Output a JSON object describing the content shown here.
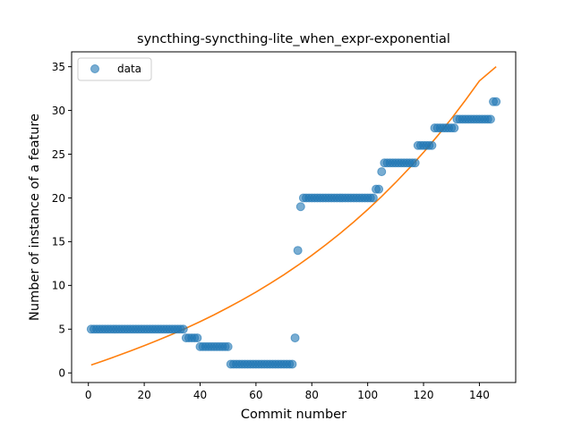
{
  "chart_data": {
    "type": "scatter",
    "title": "syncthing-syncthing-lite_when_expr-exponential",
    "xlabel": "Commit number",
    "ylabel": "Number of instance of a feature",
    "xlim": [
      -6,
      153
    ],
    "ylim": [
      -1.1,
      36.7
    ],
    "xticks": [
      0,
      20,
      40,
      60,
      80,
      100,
      120,
      140
    ],
    "yticks": [
      0,
      5,
      10,
      15,
      20,
      25,
      30,
      35
    ],
    "grid": false,
    "legend": {
      "placement": "top-left",
      "entries": [
        "data"
      ]
    },
    "colors": {
      "data": "#1f77b4",
      "fit": "#ff7f0e"
    },
    "series": [
      {
        "name": "data",
        "kind": "scatter",
        "x": [
          1,
          2,
          3,
          4,
          5,
          6,
          7,
          8,
          9,
          10,
          11,
          12,
          13,
          14,
          15,
          16,
          17,
          18,
          19,
          20,
          21,
          22,
          23,
          24,
          25,
          26,
          27,
          28,
          29,
          30,
          31,
          32,
          33,
          34,
          35,
          36,
          37,
          38,
          39,
          40,
          41,
          42,
          43,
          44,
          45,
          46,
          47,
          48,
          49,
          50,
          51,
          52,
          53,
          54,
          55,
          56,
          57,
          58,
          59,
          60,
          61,
          62,
          63,
          64,
          65,
          66,
          67,
          68,
          69,
          70,
          71,
          72,
          73,
          74,
          75,
          76,
          77,
          78,
          79,
          80,
          81,
          82,
          83,
          84,
          85,
          86,
          87,
          88,
          89,
          90,
          91,
          92,
          93,
          94,
          95,
          96,
          97,
          98,
          99,
          100,
          101,
          102,
          103,
          104,
          105,
          106,
          107,
          108,
          109,
          110,
          111,
          112,
          113,
          114,
          115,
          116,
          117,
          118,
          119,
          120,
          121,
          122,
          123,
          124,
          125,
          126,
          127,
          128,
          129,
          130,
          131,
          132,
          133,
          134,
          135,
          136,
          137,
          138,
          139,
          140,
          141,
          142,
          143,
          144,
          145,
          146
        ],
        "y": [
          5,
          5,
          5,
          5,
          5,
          5,
          5,
          5,
          5,
          5,
          5,
          5,
          5,
          5,
          5,
          5,
          5,
          5,
          5,
          5,
          5,
          5,
          5,
          5,
          5,
          5,
          5,
          5,
          5,
          5,
          5,
          5,
          5,
          5,
          4,
          4,
          4,
          4,
          4,
          3,
          3,
          3,
          3,
          3,
          3,
          3,
          3,
          3,
          3,
          3,
          1,
          1,
          1,
          1,
          1,
          1,
          1,
          1,
          1,
          1,
          1,
          1,
          1,
          1,
          1,
          1,
          1,
          1,
          1,
          1,
          1,
          1,
          1,
          4,
          14,
          19,
          20,
          20,
          20,
          20,
          20,
          20,
          20,
          20,
          20,
          20,
          20,
          20,
          20,
          20,
          20,
          20,
          20,
          20,
          20,
          20,
          20,
          20,
          20,
          20,
          20,
          20,
          21,
          21,
          23,
          24,
          24,
          24,
          24,
          24,
          24,
          24,
          24,
          24,
          24,
          24,
          24,
          26,
          26,
          26,
          26,
          26,
          26,
          28,
          28,
          28,
          28,
          28,
          28,
          28,
          28,
          29,
          29,
          29,
          29,
          29,
          29,
          29,
          29,
          29,
          29,
          29,
          29,
          29,
          31,
          31
        ]
      },
      {
        "name": "",
        "kind": "line",
        "x": [
          1,
          5,
          10,
          15,
          20,
          25,
          30,
          35,
          40,
          45,
          50,
          55,
          60,
          65,
          70,
          75,
          80,
          85,
          90,
          95,
          100,
          105,
          110,
          115,
          120,
          125,
          130,
          135,
          140,
          146
        ],
        "y": [
          0.9,
          1.34,
          1.91,
          2.5,
          3.11,
          3.75,
          4.42,
          5.12,
          5.86,
          6.64,
          7.47,
          8.33,
          9.24,
          10.21,
          11.22,
          12.3,
          13.44,
          14.64,
          15.91,
          17.25,
          18.67,
          20.17,
          21.76,
          23.44,
          25.21,
          27.09,
          29.07,
          31.17,
          33.38,
          35.0
        ]
      }
    ]
  }
}
